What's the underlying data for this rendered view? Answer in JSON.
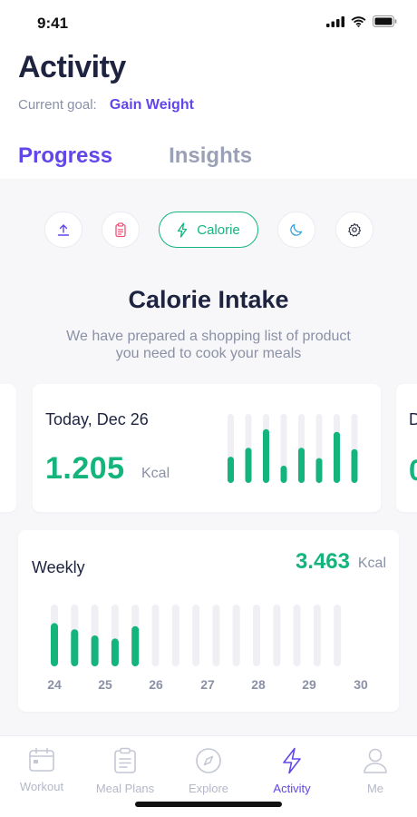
{
  "status_bar": {
    "time": "9:41"
  },
  "header": {
    "title": "Activity",
    "goal_label": "Current goal:",
    "goal_value": "Gain Weight",
    "tabs": [
      {
        "label": "Progress",
        "active": true
      },
      {
        "label": "Insights",
        "active": false
      }
    ]
  },
  "filters": {
    "items": [
      {
        "icon": "upload-icon"
      },
      {
        "icon": "clipboard-icon"
      },
      {
        "icon": "lightning-icon",
        "label": "Calorie",
        "selected": true
      },
      {
        "icon": "moon-icon"
      },
      {
        "icon": "gear-icon"
      }
    ]
  },
  "section": {
    "title": "Calorie Intake",
    "subtitle": "We have prepared a shopping list of product you need to cook your meals"
  },
  "today_card": {
    "date": "Today, Dec 26",
    "value": "1.205",
    "unit": "Kcal"
  },
  "peek_card": {
    "date_initial": "D",
    "value_initial": "0"
  },
  "weekly_card": {
    "title": "Weekly",
    "value": "3.463",
    "unit": "Kcal",
    "day_labels": [
      "24",
      "25",
      "26",
      "27",
      "28",
      "29",
      "30"
    ]
  },
  "chart_data": [
    {
      "type": "bar",
      "name_hint": "today",
      "values": [
        0.38,
        0.51,
        0.78,
        0.25,
        0.51,
        0.36,
        0.74,
        0.49
      ],
      "ylim": [
        0,
        1
      ]
    },
    {
      "type": "bar",
      "name_hint": "weekly",
      "values": [
        0.7,
        0.6,
        0.5,
        0.45,
        0.65,
        0,
        0,
        0,
        0,
        0,
        0,
        0,
        0,
        0,
        0
      ],
      "ylim": [
        0,
        1
      ]
    }
  ],
  "nav": {
    "items": [
      {
        "label": "Workout",
        "icon": "calendar-icon",
        "active": false
      },
      {
        "label": "Meal Plans",
        "icon": "clipboard-icon",
        "active": false
      },
      {
        "label": "Explore",
        "icon": "compass-icon",
        "active": false
      },
      {
        "label": "Activity",
        "icon": "lightning-icon",
        "active": true
      },
      {
        "label": "Me",
        "icon": "person-icon",
        "active": false
      }
    ]
  },
  "colors": {
    "accent": "#6246ea",
    "green": "#13b57c",
    "track": "#f0f0f4",
    "muted": "#8a90a6"
  }
}
